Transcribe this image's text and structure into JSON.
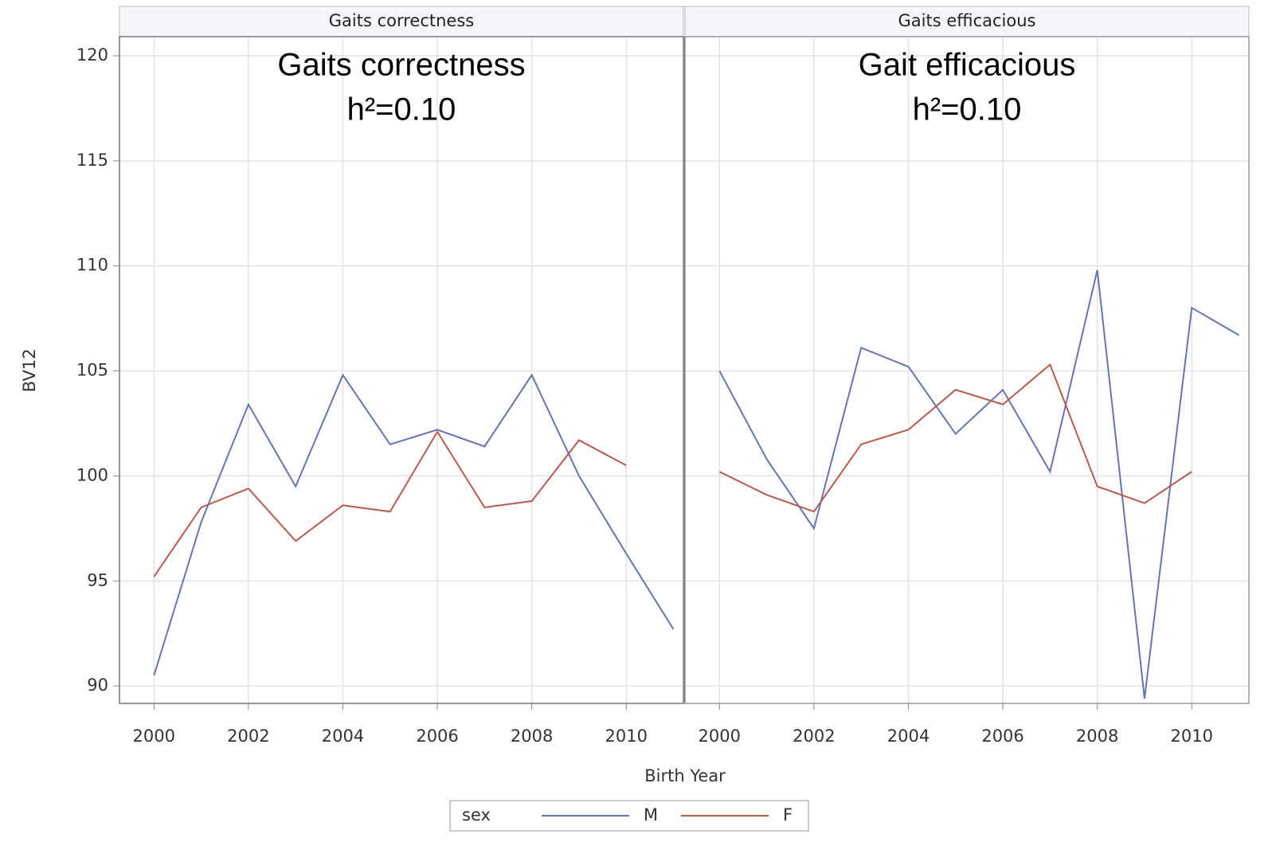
{
  "xlabel": "Birth Year",
  "ylabel": "BV12",
  "legend_title": "sex",
  "chart_data": [
    {
      "type": "line",
      "title": "Gaits correctness",
      "annotations": [
        "Gaits correctness",
        "h²=0.10"
      ],
      "x": [
        2000,
        2001,
        2002,
        2003,
        2004,
        2005,
        2006,
        2007,
        2008,
        2009,
        2010,
        2011
      ],
      "series": [
        {
          "name": "M",
          "color": "#6674b4",
          "values": [
            90.5,
            97.8,
            103.4,
            99.5,
            104.8,
            101.5,
            102.2,
            101.4,
            104.8,
            100.0,
            96.3,
            92.7
          ]
        },
        {
          "name": "F",
          "color": "#b85a4e",
          "values": [
            95.2,
            98.5,
            99.4,
            96.9,
            98.6,
            98.3,
            102.1,
            98.5,
            98.8,
            101.7,
            100.5,
            null
          ]
        }
      ],
      "xlim": [
        1999.27,
        2011.21
      ],
      "xticks": [
        2000,
        2002,
        2004,
        2006,
        2008,
        2010
      ],
      "ylim": [
        89.17,
        120.91
      ],
      "yticks": [
        90,
        95,
        100,
        105,
        110,
        115,
        120
      ],
      "grid": true
    },
    {
      "type": "line",
      "title": "Gaits efficacious",
      "annotations": [
        "Gait efficacious",
        "h²=0.10"
      ],
      "x": [
        2000,
        2001,
        2002,
        2003,
        2004,
        2005,
        2006,
        2007,
        2008,
        2009,
        2010,
        2011
      ],
      "series": [
        {
          "name": "M",
          "color": "#6674b4",
          "values": [
            105.0,
            100.8,
            97.5,
            106.1,
            105.2,
            102.0,
            104.1,
            100.2,
            109.8,
            89.4,
            108.0,
            106.7
          ]
        },
        {
          "name": "F",
          "color": "#b85a4e",
          "values": [
            100.2,
            99.1,
            98.3,
            101.5,
            102.2,
            104.1,
            103.4,
            105.3,
            99.5,
            98.7,
            100.2,
            null
          ]
        }
      ],
      "xlim": [
        1999.27,
        2011.21
      ],
      "xticks": [
        2000,
        2002,
        2004,
        2006,
        2008,
        2010
      ],
      "ylim": [
        89.17,
        120.91
      ],
      "yticks": [
        90,
        95,
        100,
        105,
        110,
        115,
        120
      ],
      "grid": true
    }
  ]
}
